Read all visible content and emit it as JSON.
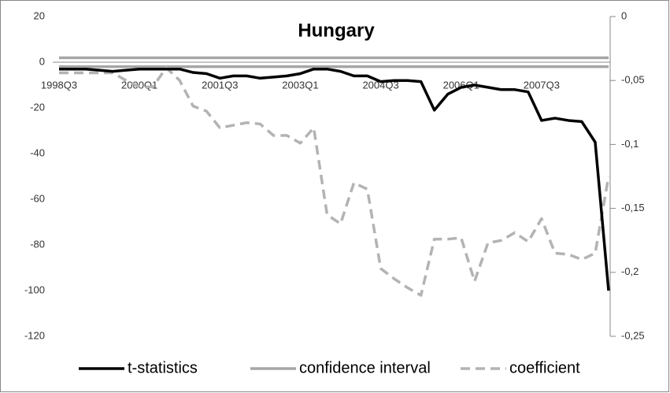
{
  "chart_data": {
    "type": "line",
    "title": "Hungary",
    "categories": [
      "1998Q3",
      null,
      null,
      null,
      null,
      null,
      "2000Q1",
      null,
      null,
      null,
      null,
      null,
      "2001Q3",
      null,
      null,
      null,
      null,
      null,
      "2003Q1",
      null,
      null,
      null,
      null,
      null,
      "2004Q3",
      null,
      null,
      null,
      null,
      null,
      "2006Q1",
      null,
      null,
      null,
      null,
      null,
      "2007Q3",
      null,
      null,
      null,
      null,
      null
    ],
    "ylim": [
      -120,
      20
    ],
    "yticks": [
      -120,
      -100,
      -80,
      -60,
      -40,
      -20,
      0,
      20
    ],
    "y2lim": [
      -0.25,
      0
    ],
    "y2ticks": [
      {
        "value": -0.25,
        "label": "-0,25"
      },
      {
        "value": -0.2,
        "label": "-0,2"
      },
      {
        "value": -0.15,
        "label": "-0,15"
      },
      {
        "value": -0.1,
        "label": "-0,1"
      },
      {
        "value": -0.05,
        "label": "-0,05"
      },
      0
    ],
    "legend": "bottom",
    "series": [
      {
        "name": "t-statistics",
        "color": "#000000",
        "values": [
          -3,
          -3,
          -3,
          -3.5,
          -4,
          -3.5,
          -3,
          -3,
          -3,
          -3,
          -4.5,
          -5,
          -7,
          -6,
          -6,
          -7,
          -6.5,
          -6,
          -5,
          -3,
          -3,
          -4,
          -6,
          -6,
          -8.5,
          -8,
          -8,
          -8.5,
          -21,
          -14,
          -11,
          -10,
          -11,
          -12,
          -12,
          -13,
          -25.5,
          -24.5,
          -25.5,
          -26,
          -35,
          -100
        ]
      },
      {
        "name": "confidence interval",
        "color": "#a6a6a6",
        "values": [
          1.96,
          1.96,
          1.96,
          1.96,
          1.96,
          1.96,
          1.96,
          1.96,
          1.96,
          1.96,
          1.96,
          1.96,
          1.96,
          1.96,
          1.96,
          1.96,
          1.96,
          1.96,
          1.96,
          1.96,
          1.96,
          1.96,
          1.96,
          1.96,
          1.96,
          1.96,
          1.96,
          1.96,
          1.96,
          1.96,
          1.96,
          1.96,
          1.96,
          1.96,
          1.96,
          1.96,
          1.96,
          1.96,
          1.96,
          1.96,
          1.96,
          1.96
        ],
        "lower": [
          -1.96,
          -1.96,
          -1.96,
          -1.96,
          -1.96,
          -1.96,
          -1.96,
          -1.96,
          -1.96,
          -1.96,
          -1.96,
          -1.96,
          -1.96,
          -1.96,
          -1.96,
          -1.96,
          -1.96,
          -1.96,
          -1.96,
          -1.96,
          -1.96,
          -1.96,
          -1.96,
          -1.96,
          -1.96,
          -1.96,
          -1.96,
          -1.96,
          -1.96,
          -1.96,
          -1.96,
          -1.96,
          -1.96,
          -1.96,
          -1.96,
          -1.96,
          -1.96,
          -1.96,
          -1.96,
          -1.96,
          -1.96,
          -1.96
        ]
      },
      {
        "name": "coefficient",
        "color": "#b3b3b3",
        "dashed": true,
        "axis": "y2",
        "values": [
          -0.044,
          -0.044,
          -0.044,
          -0.044,
          -0.044,
          -0.05,
          -0.055,
          -0.055,
          -0.04,
          -0.05,
          -0.07,
          -0.074,
          -0.087,
          -0.085,
          -0.083,
          -0.084,
          -0.093,
          -0.093,
          -0.099,
          -0.087,
          -0.155,
          -0.162,
          -0.13,
          -0.135,
          -0.197,
          -0.205,
          -0.212,
          -0.218,
          -0.174,
          -0.174,
          -0.173,
          -0.207,
          -0.177,
          -0.175,
          -0.169,
          -0.176,
          -0.158,
          -0.185,
          -0.186,
          -0.19,
          -0.185,
          -0.125
        ]
      }
    ]
  }
}
